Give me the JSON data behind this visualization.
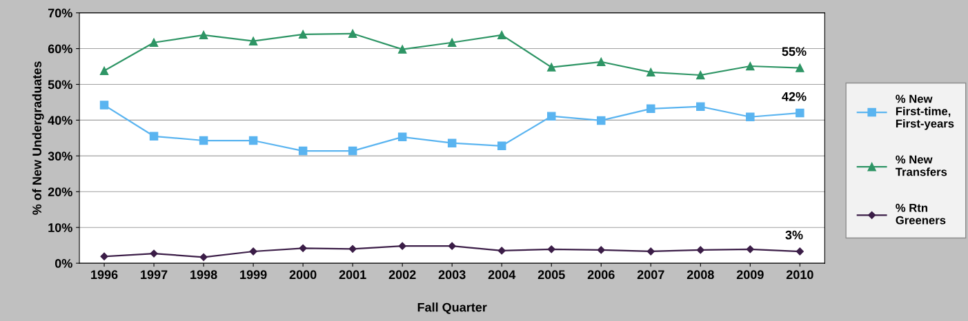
{
  "chart_data": {
    "type": "line",
    "xlabel": "Fall Quarter",
    "ylabel": "% of New Undergraduates",
    "categories": [
      "1996",
      "1997",
      "1998",
      "1999",
      "2000",
      "2001",
      "2002",
      "2003",
      "2004",
      "2005",
      "2006",
      "2007",
      "2008",
      "2009",
      "2010"
    ],
    "series": [
      {
        "name": "% New First-time, First-years",
        "color": "#5ab4f0",
        "marker": "square",
        "values": [
          44.2,
          35.5,
          34.3,
          34.3,
          31.4,
          31.4,
          35.3,
          33.6,
          32.8,
          41.1,
          39.9,
          43.2,
          43.8,
          40.9,
          42.0
        ]
      },
      {
        "name": "% New Transfers",
        "color": "#2e9565",
        "marker": "triangle",
        "values": [
          53.8,
          61.7,
          63.8,
          62.1,
          64.0,
          64.2,
          59.8,
          61.7,
          63.8,
          54.8,
          56.3,
          53.4,
          52.6,
          55.1,
          54.6
        ]
      },
      {
        "name": "% Rtn Greeners",
        "color": "#3b1d47",
        "marker": "diamond",
        "values": [
          1.9,
          2.7,
          1.7,
          3.3,
          4.2,
          4.0,
          4.8,
          4.8,
          3.5,
          3.9,
          3.7,
          3.3,
          3.7,
          3.9,
          3.3
        ]
      }
    ],
    "ylim": [
      0,
      70
    ],
    "yticks": [
      {
        "value": 0,
        "label": "0%"
      },
      {
        "value": 10,
        "label": "10%"
      },
      {
        "value": 20,
        "label": "20%"
      },
      {
        "value": 30,
        "label": "30%"
      },
      {
        "value": 40,
        "label": "40%"
      },
      {
        "value": 50,
        "label": "50%"
      },
      {
        "value": 60,
        "label": "60%"
      },
      {
        "value": 70,
        "label": "70%"
      }
    ],
    "grid": "y",
    "legend": "right",
    "annotations": [
      {
        "text": "55%",
        "x": "2010",
        "y": 54.6
      },
      {
        "text": "42%",
        "x": "2010",
        "y": 42.0
      },
      {
        "text": "3%",
        "x": "2010",
        "y": 3.3
      }
    ]
  }
}
